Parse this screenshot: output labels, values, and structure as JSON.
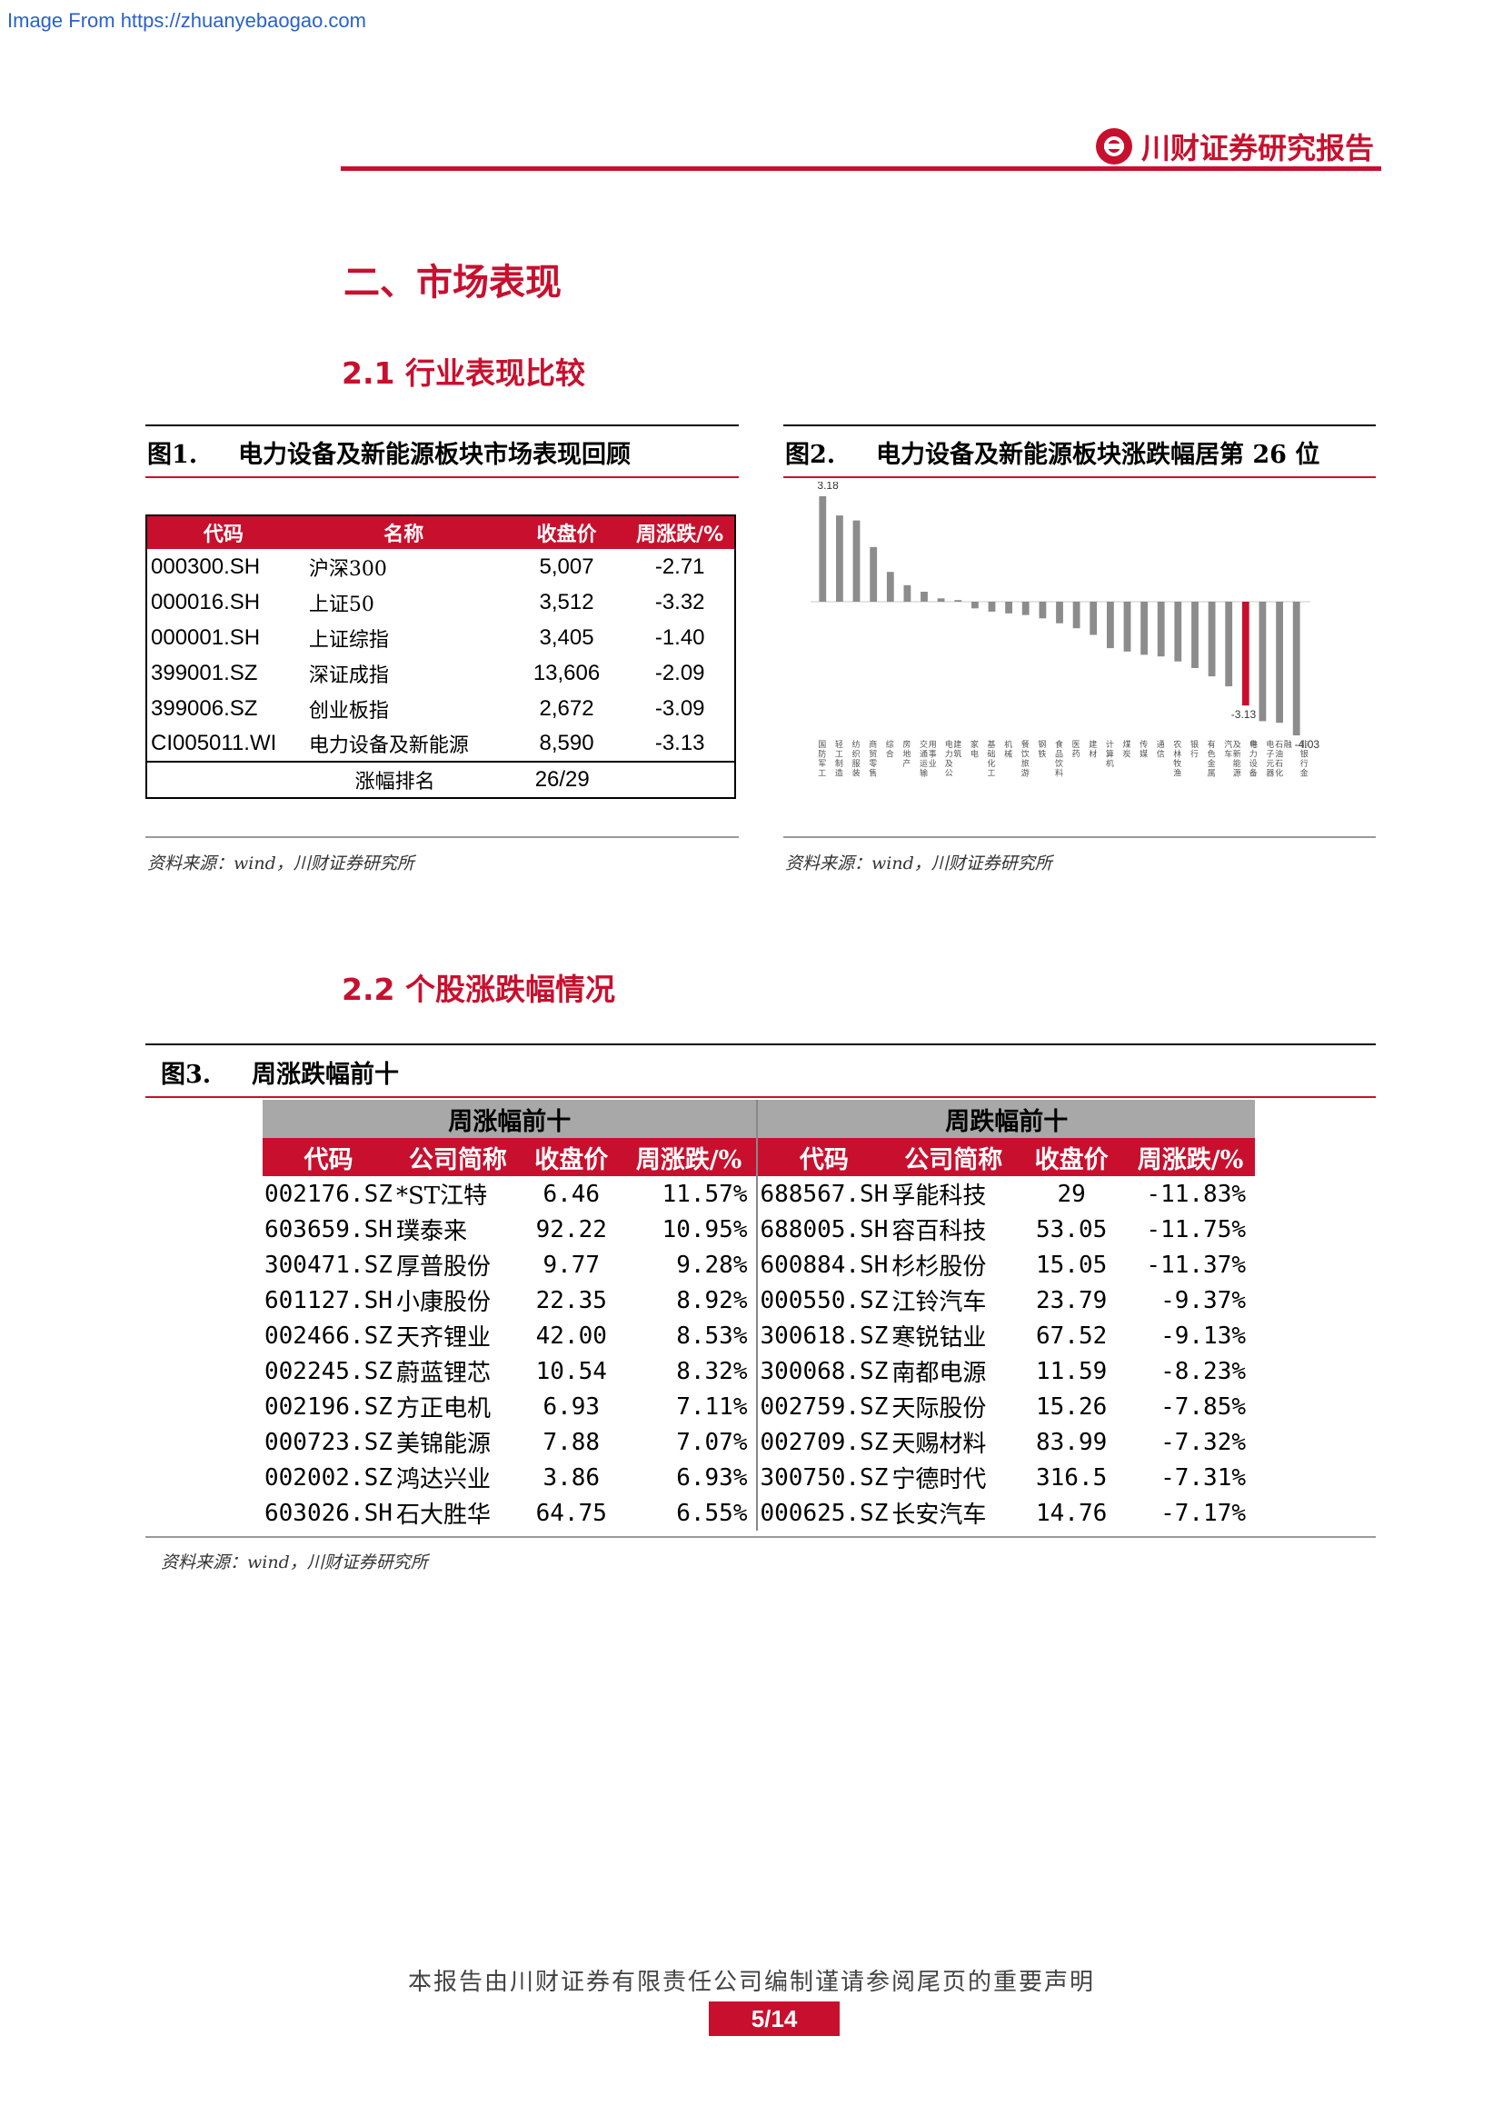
{
  "source_url": "Image From https://zhuanyebaogao.com",
  "brand": "川财证券研究报告",
  "section_title": "二、市场表现",
  "subsection_1": "2.1 行业表现比较",
  "subsection_2": "2.2 个股涨跌幅情况",
  "fig1": {
    "label": "图1.",
    "title": "电力设备及新能源板块市场表现回顾",
    "headers": [
      "代码",
      "名称",
      "收盘价",
      "周涨跌/%"
    ],
    "rows": [
      {
        "code": "000300.SH",
        "name": "沪深300",
        "close": "5,007",
        "change": "-2.71"
      },
      {
        "code": "000016.SH",
        "name": "上证50",
        "close": "3,512",
        "change": "-3.32"
      },
      {
        "code": "000001.SH",
        "name": "上证综指",
        "close": "3,405",
        "change": "-1.40"
      },
      {
        "code": "399001.SZ",
        "name": "深证成指",
        "close": "13,606",
        "change": "-2.09"
      },
      {
        "code": "399006.SZ",
        "name": "创业板指",
        "close": "2,672",
        "change": "-3.09"
      },
      {
        "code": "CI005011.WI",
        "name": "电力设备及新能源",
        "close": "8,590",
        "change": "-3.13"
      }
    ],
    "rank_label": "涨幅排名",
    "rank_value": "26/29",
    "source": "资料来源：wind，川财证券研究所"
  },
  "fig2": {
    "label": "图2.",
    "title": "电力设备及新能源板块涨跌幅居第 26 位",
    "source": "资料来源：wind，川财证券研究所"
  },
  "chart_data": {
    "type": "bar",
    "categories": [
      "国防军工",
      "轻工制造",
      "纺织服装",
      "商贸零售",
      "综合",
      "房地产",
      "交通运输",
      "电力及公用事业",
      "建筑",
      "家电",
      "基础化工",
      "机械",
      "餐饮旅游",
      "钢铁",
      "食品饮料",
      "医药",
      "建材",
      "计算机",
      "煤炭",
      "传媒",
      "通信",
      "农林牧渔",
      "银行",
      "有色金属",
      "汽车",
      "电力设备及新能源",
      "电子元器件",
      "石油石化",
      "非银行金融"
    ],
    "values": [
      3.18,
      2.6,
      2.45,
      1.65,
      0.9,
      0.5,
      0.3,
      0.1,
      0.05,
      -0.2,
      -0.3,
      -0.35,
      -0.4,
      -0.5,
      -0.65,
      -0.8,
      -1.0,
      -1.4,
      -1.5,
      -1.6,
      -1.65,
      -1.8,
      -2.0,
      -2.25,
      -2.55,
      -3.13,
      -3.6,
      -3.65,
      -4.03
    ],
    "data_labels": {
      "0": "3.18",
      "25": "-3.13",
      "28": "-4.03"
    },
    "highlight_index": 25,
    "bar_color": "#8c8c8c",
    "highlight_color": "#c8102e"
  },
  "fig3": {
    "label": "图3.",
    "title": "周涨跌幅前十",
    "group_left": "周涨幅前十",
    "group_right": "周跌幅前十",
    "headers": [
      "代码",
      "公司简称",
      "收盘价",
      "周涨跌/%",
      "代码",
      "公司简称",
      "收盘价",
      "周涨跌/%"
    ],
    "rows": [
      [
        "002176.SZ",
        "*ST江特",
        "6.46",
        "11.57%",
        "688567.SH",
        "孚能科技",
        "29",
        "-11.83%"
      ],
      [
        "603659.SH",
        "璞泰来",
        "92.22",
        "10.95%",
        "688005.SH",
        "容百科技",
        "53.05",
        "-11.75%"
      ],
      [
        "300471.SZ",
        "厚普股份",
        "9.77",
        "9.28%",
        "600884.SH",
        "杉杉股份",
        "15.05",
        "-11.37%"
      ],
      [
        "601127.SH",
        "小康股份",
        "22.35",
        "8.92%",
        "000550.SZ",
        "江铃汽车",
        "23.79",
        "-9.37%"
      ],
      [
        "002466.SZ",
        "天齐锂业",
        "42.00",
        "8.53%",
        "300618.SZ",
        "寒锐钴业",
        "67.52",
        "-9.13%"
      ],
      [
        "002245.SZ",
        "蔚蓝锂芯",
        "10.54",
        "8.32%",
        "300068.SZ",
        "南都电源",
        "11.59",
        "-8.23%"
      ],
      [
        "002196.SZ",
        "方正电机",
        "6.93",
        "7.11%",
        "002759.SZ",
        "天际股份",
        "15.26",
        "-7.85%"
      ],
      [
        "000723.SZ",
        "美锦能源",
        "7.88",
        "7.07%",
        "002709.SZ",
        "天赐材料",
        "83.99",
        "-7.32%"
      ],
      [
        "002002.SZ",
        "鸿达兴业",
        "3.86",
        "6.93%",
        "300750.SZ",
        "宁德时代",
        "316.5",
        "-7.31%"
      ],
      [
        "603026.SH",
        "石大胜华",
        "64.75",
        "6.55%",
        "000625.SZ",
        "长安汽车",
        "14.76",
        "-7.17%"
      ]
    ],
    "source": "资料来源：wind，川财证券研究所"
  },
  "footer_note": "本报告由川财证券有限责任公司编制谨请参阅尾页的重要声明",
  "page_number": "5/14"
}
